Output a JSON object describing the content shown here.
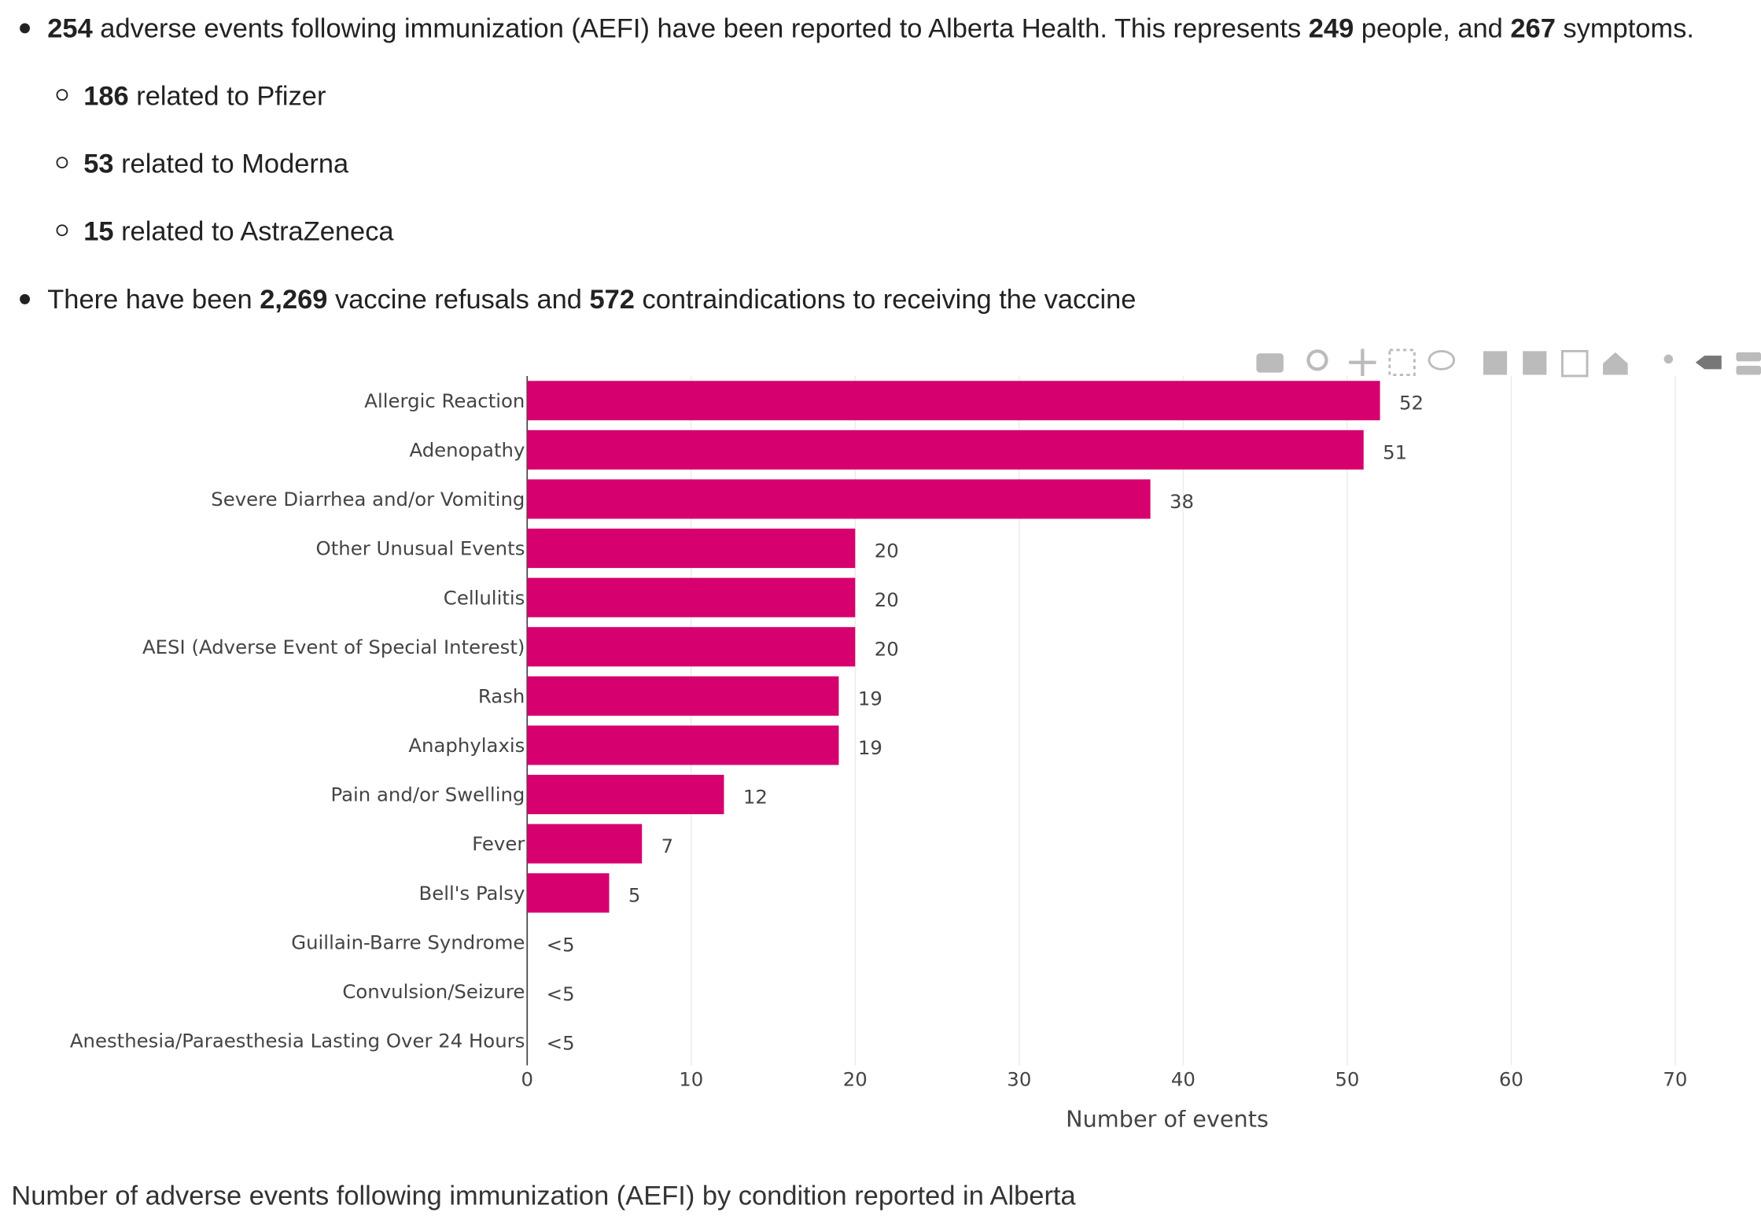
{
  "summary": {
    "items": [
      {
        "level": 1,
        "parts": [
          {
            "text": "254",
            "bold": true
          },
          {
            "text": " adverse events following immunization (AEFI) have been reported to Alberta Health. This represents "
          },
          {
            "text": "249",
            "bold": true
          },
          {
            "text": " people, and "
          },
          {
            "text": "267",
            "bold": true
          },
          {
            "text": " symptoms."
          }
        ]
      },
      {
        "level": 2,
        "parts": [
          {
            "text": "186",
            "bold": true
          },
          {
            "text": " related to Pfizer"
          }
        ]
      },
      {
        "level": 2,
        "parts": [
          {
            "text": "53",
            "bold": true
          },
          {
            "text": " related to Moderna"
          }
        ]
      },
      {
        "level": 2,
        "parts": [
          {
            "text": "15",
            "bold": true
          },
          {
            "text": " related to AstraZeneca"
          }
        ]
      },
      {
        "level": 1,
        "parts": [
          {
            "text": "There have been "
          },
          {
            "text": "2,269",
            "bold": true
          },
          {
            "text": " vaccine refusals and "
          },
          {
            "text": "572",
            "bold": true
          },
          {
            "text": " contraindications to receiving the vaccine"
          }
        ]
      }
    ]
  },
  "chart_data": {
    "type": "hbar",
    "x_label": "Number of events",
    "categories": [
      "Allergic Reaction",
      "Adenopathy",
      "Severe Diarrhea and/or Vomiting",
      "Other Unusual Events",
      "Cellulitis",
      "AESI (Adverse Event of Special Interest)",
      "Rash",
      "Anaphylaxis",
      "Pain and/or Swelling",
      "Fever",
      "Bell's Palsy",
      "Guillain-Barre Syndrome",
      "Convulsion/Seizure",
      "Anesthesia/Paraesthesia Lasting Over 24 Hours"
    ],
    "values": [
      52,
      51,
      38,
      20,
      20,
      20,
      19,
      19,
      12,
      7,
      5,
      null,
      null,
      null
    ],
    "value_labels": [
      null,
      null,
      null,
      null,
      null,
      null,
      null,
      null,
      null,
      null,
      null,
      "<5",
      "<5",
      "<5"
    ],
    "color": "#d6006e",
    "xlim": [
      0,
      70
    ],
    "xticks": [
      0,
      10,
      20,
      30,
      40,
      50,
      60,
      70
    ],
    "grid": true
  },
  "caption": "Number of adverse events following immunization (AEFI) by condition reported in Alberta"
}
